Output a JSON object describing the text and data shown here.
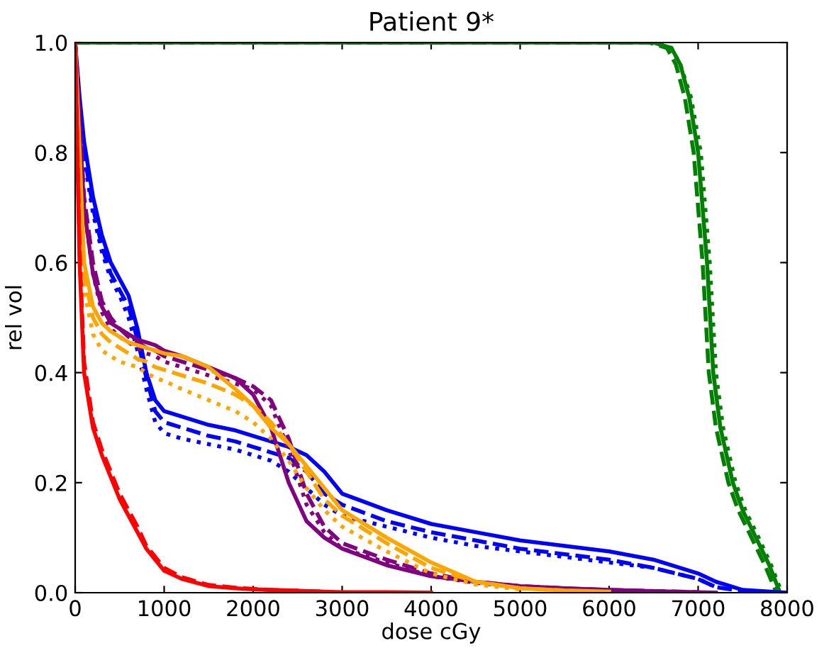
{
  "chart_data": {
    "type": "line",
    "title": "Patient 9*",
    "xlabel": "dose cGy",
    "ylabel": "rel vol",
    "x": [
      0,
      50,
      100,
      200,
      300,
      400,
      500,
      600,
      700,
      800,
      900,
      1000,
      1200,
      1500,
      1800,
      2000,
      2200,
      2400,
      2600,
      2800,
      3000,
      3500,
      4000,
      4500,
      5000,
      5500,
      6000,
      6500,
      7000,
      7200,
      7500,
      8000
    ],
    "xlim": [
      0,
      8000
    ],
    "ylim": [
      0,
      1
    ],
    "xticks": [
      0,
      1000,
      2000,
      3000,
      4000,
      5000,
      6000,
      7000,
      8000
    ],
    "yticks": [
      {
        "value": 0,
        "label": "0.0"
      },
      0.2,
      0.4,
      0.6,
      0.8,
      {
        "value": 1,
        "label": "1.0"
      }
    ],
    "grid": false,
    "marker": "none",
    "series": [
      {
        "color": "#008000",
        "line_style": "solid",
        "x": [
          0,
          6000,
          6500,
          6700,
          6800,
          6900,
          7000,
          7050,
          7100,
          7170,
          7250,
          7390,
          7500,
          7650,
          7800,
          7920
        ],
        "values": [
          1,
          1,
          1,
          0.99,
          0.96,
          0.9,
          0.8,
          0.7,
          0.6,
          0.4,
          0.3,
          0.2,
          0.15,
          0.1,
          0.05,
          0
        ]
      },
      {
        "color": "#008000",
        "line_style": "dashed",
        "x": [
          0,
          6000,
          6450,
          6650,
          6750,
          6850,
          6950,
          7000,
          7050,
          7120,
          7200,
          7340,
          7450,
          7600,
          7750,
          7880
        ],
        "values": [
          1,
          1,
          1,
          0.99,
          0.96,
          0.9,
          0.8,
          0.7,
          0.6,
          0.4,
          0.3,
          0.2,
          0.15,
          0.1,
          0.05,
          0
        ]
      },
      {
        "color": "#008000",
        "line_style": "dotted",
        "x": [
          0,
          6000,
          6500,
          6700,
          6800,
          6920,
          7030,
          7080,
          7130,
          7200,
          7280,
          7420,
          7530,
          7680,
          7820,
          7940
        ],
        "values": [
          1,
          1,
          1,
          0.99,
          0.96,
          0.9,
          0.8,
          0.7,
          0.6,
          0.4,
          0.3,
          0.2,
          0.15,
          0.1,
          0.05,
          0
        ]
      },
      {
        "color": "#0000ff",
        "line_style": "solid",
        "values": [
          1.0,
          0.9,
          0.82,
          0.72,
          0.65,
          0.6,
          0.57,
          0.54,
          0.48,
          0.4,
          0.35,
          0.33,
          0.32,
          0.305,
          0.295,
          0.285,
          0.275,
          0.265,
          0.25,
          0.22,
          0.18,
          0.15,
          0.125,
          0.11,
          0.095,
          0.085,
          0.075,
          0.06,
          0.035,
          0.02,
          0.005,
          0.0
        ]
      },
      {
        "color": "#0000ff",
        "line_style": "dashed",
        "values": [
          1.0,
          0.88,
          0.8,
          0.7,
          0.63,
          0.58,
          0.55,
          0.52,
          0.46,
          0.39,
          0.33,
          0.31,
          0.3,
          0.285,
          0.275,
          0.265,
          0.255,
          0.245,
          0.22,
          0.18,
          0.16,
          0.13,
          0.11,
          0.095,
          0.08,
          0.07,
          0.06,
          0.045,
          0.025,
          0.01,
          0.003,
          null
        ]
      },
      {
        "color": "#0000ff",
        "line_style": "dotted",
        "values": [
          1.0,
          0.87,
          0.79,
          0.69,
          0.62,
          0.57,
          0.54,
          0.5,
          0.44,
          0.37,
          0.31,
          0.29,
          0.28,
          0.27,
          0.26,
          0.25,
          0.24,
          0.22,
          0.19,
          0.16,
          0.14,
          0.12,
          0.1,
          0.085,
          0.075,
          0.065,
          0.055,
          0.045,
          0.025,
          0.01,
          null,
          null
        ]
      },
      {
        "color": "#800080",
        "line_style": "solid",
        "values": [
          1.0,
          0.85,
          0.7,
          0.58,
          0.52,
          0.49,
          0.48,
          0.47,
          0.46,
          0.455,
          0.45,
          0.44,
          0.43,
          0.41,
          0.39,
          0.36,
          0.3,
          0.2,
          0.13,
          0.1,
          0.08,
          0.05,
          0.03,
          0.02,
          0.012,
          0.008,
          0.005,
          0.003,
          0.001,
          0,
          null,
          null
        ]
      },
      {
        "color": "#800080",
        "line_style": "dashed",
        "values": [
          1.0,
          0.86,
          0.72,
          0.6,
          0.53,
          0.5,
          0.48,
          0.465,
          0.455,
          0.445,
          0.44,
          0.43,
          0.42,
          0.405,
          0.39,
          0.375,
          0.35,
          0.28,
          0.18,
          0.12,
          0.09,
          0.06,
          0.035,
          0.02,
          0.012,
          0.008,
          0.005,
          0.003,
          0.001,
          null,
          null,
          null
        ]
      },
      {
        "color": "#800080",
        "line_style": "dotted",
        "values": [
          1.0,
          0.85,
          0.7,
          0.58,
          0.51,
          0.48,
          0.465,
          0.455,
          0.445,
          0.435,
          0.43,
          0.42,
          0.41,
          0.395,
          0.38,
          0.37,
          0.34,
          0.26,
          0.16,
          0.11,
          0.08,
          0.055,
          0.03,
          0.018,
          0.01,
          0.006,
          0.004,
          0.002,
          null,
          null,
          null,
          null
        ]
      },
      {
        "color": "#ffa500",
        "line_style": "solid",
        "values": [
          1.0,
          0.8,
          0.6,
          0.52,
          0.49,
          0.475,
          0.465,
          0.455,
          0.45,
          0.445,
          0.44,
          0.435,
          0.43,
          0.41,
          0.37,
          0.34,
          0.3,
          0.27,
          0.23,
          0.19,
          0.15,
          0.1,
          0.055,
          0.02,
          0.008,
          0.004,
          0.002,
          null,
          null,
          null,
          null,
          null
        ]
      },
      {
        "color": "#ffa500",
        "line_style": "dashed",
        "values": [
          1.0,
          0.78,
          0.58,
          0.5,
          0.47,
          0.455,
          0.445,
          0.435,
          0.425,
          0.42,
          0.41,
          0.405,
          0.395,
          0.38,
          0.36,
          0.34,
          0.31,
          0.27,
          0.22,
          0.17,
          0.14,
          0.09,
          0.045,
          0.02,
          0.008,
          0.004,
          null,
          null,
          null,
          null,
          null,
          null
        ]
      },
      {
        "color": "#ffa500",
        "line_style": "dotted",
        "values": [
          1.0,
          0.75,
          0.55,
          0.47,
          0.44,
          0.43,
          0.42,
          0.415,
          0.41,
          0.4,
          0.39,
          0.385,
          0.37,
          0.35,
          0.33,
          0.31,
          0.28,
          0.24,
          0.19,
          0.15,
          0.12,
          0.075,
          0.035,
          0.015,
          0.006,
          null,
          null,
          null,
          null,
          null,
          null,
          null
        ]
      },
      {
        "color": "#ff0000",
        "line_style": "solid",
        "values": [
          1.0,
          0.6,
          0.4,
          0.3,
          0.25,
          0.21,
          0.17,
          0.14,
          0.11,
          0.08,
          0.06,
          0.04,
          0.025,
          0.012,
          0.008,
          0.006,
          0.005,
          0.004,
          0.003,
          0.002,
          0.001,
          0.001,
          0,
          null,
          null,
          null,
          null,
          null,
          null,
          null,
          null,
          null
        ]
      },
      {
        "color": "#ff0000",
        "line_style": "dashed",
        "values": [
          1.0,
          0.62,
          0.42,
          0.31,
          0.26,
          0.22,
          0.18,
          0.15,
          0.12,
          0.085,
          0.065,
          0.045,
          0.028,
          0.014,
          0.009,
          0.007,
          0.005,
          0.004,
          0.003,
          0.002,
          null,
          null,
          null,
          null,
          null,
          null,
          null,
          null,
          null,
          null,
          null,
          null
        ]
      }
    ]
  }
}
